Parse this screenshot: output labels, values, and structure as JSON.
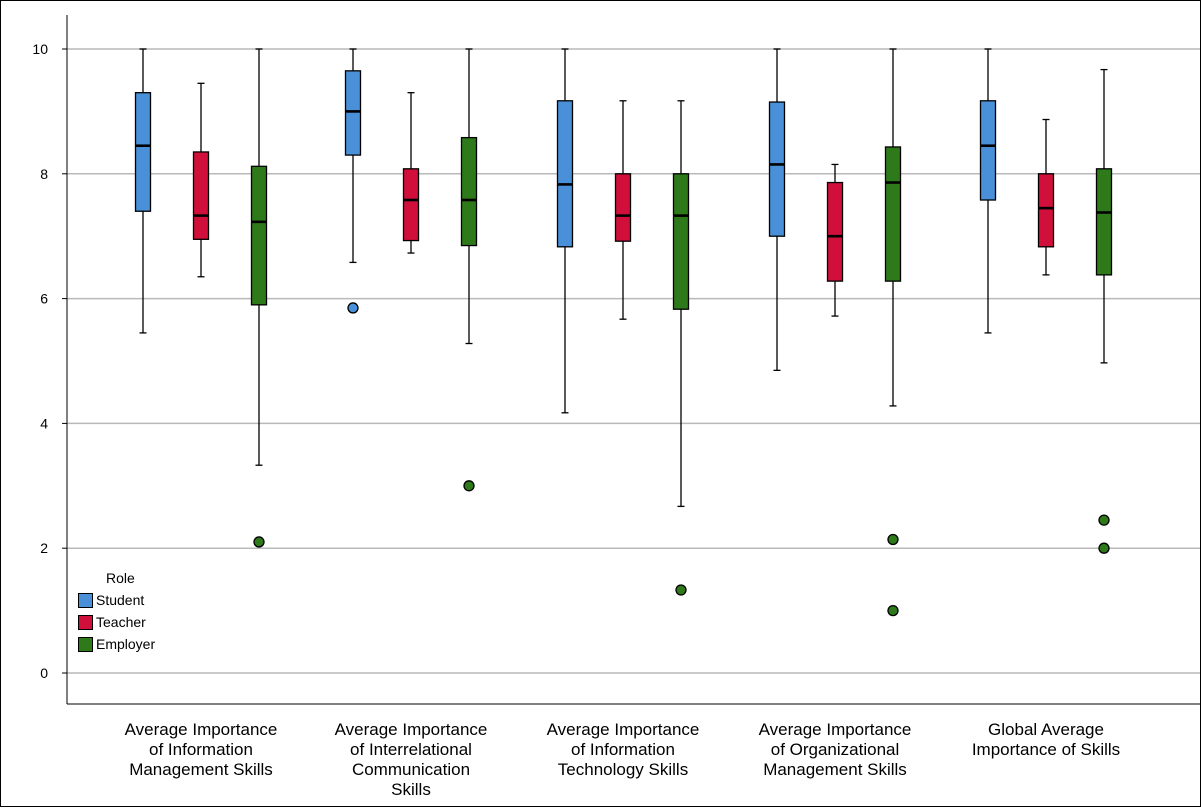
{
  "chart_data": {
    "type": "boxplot",
    "title": "",
    "xlabel": "",
    "ylabel": "",
    "ylim": [
      -0.5,
      10.5
    ],
    "yticks": [
      0,
      2,
      4,
      6,
      8,
      10
    ],
    "ytick_labels": [
      "0",
      "2",
      "4",
      "6",
      "8",
      "10"
    ],
    "grid": "horizontal",
    "legend": {
      "title": "Role",
      "placement": "bottom-left",
      "items": [
        {
          "name": "Student",
          "color": "#4a90d9"
        },
        {
          "name": "Teacher",
          "color": "#d0103a"
        },
        {
          "name": "Employer",
          "color": "#2e7a1a"
        }
      ]
    },
    "categories": [
      [
        "Average Importance",
        "of Information",
        "Management Skills"
      ],
      [
        "Average Importance",
        "of Interrelational",
        "Communication",
        "Skills"
      ],
      [
        "Average Importance",
        "of Information",
        "Technology Skills"
      ],
      [
        "Average Importance",
        "of Organizational",
        "Management Skills"
      ],
      [
        "Global Average",
        "Importance of Skills"
      ]
    ],
    "series": [
      {
        "name": "Student",
        "color": "#4a90d9",
        "boxes": [
          {
            "min": 5.45,
            "q1": 7.4,
            "median": 8.45,
            "q3": 9.3,
            "max": 10.0,
            "outliers": []
          },
          {
            "min": 6.58,
            "q1": 8.3,
            "median": 9.0,
            "q3": 9.65,
            "max": 10.0,
            "outliers": [
              5.85
            ]
          },
          {
            "min": 4.17,
            "q1": 6.83,
            "median": 7.83,
            "q3": 9.17,
            "max": 10.0,
            "outliers": []
          },
          {
            "min": 4.85,
            "q1": 7.0,
            "median": 8.15,
            "q3": 9.15,
            "max": 10.0,
            "outliers": []
          },
          {
            "min": 5.45,
            "q1": 7.58,
            "median": 8.45,
            "q3": 9.17,
            "max": 10.0,
            "outliers": []
          }
        ]
      },
      {
        "name": "Teacher",
        "color": "#d0103a",
        "boxes": [
          {
            "min": 6.35,
            "q1": 6.95,
            "median": 7.33,
            "q3": 8.35,
            "max": 9.45,
            "outliers": []
          },
          {
            "min": 6.73,
            "q1": 6.93,
            "median": 7.58,
            "q3": 8.08,
            "max": 9.3,
            "outliers": []
          },
          {
            "min": 5.67,
            "q1": 6.92,
            "median": 7.33,
            "q3": 8.0,
            "max": 9.17,
            "outliers": []
          },
          {
            "min": 5.72,
            "q1": 6.28,
            "median": 7.0,
            "q3": 7.86,
            "max": 8.15,
            "outliers": []
          },
          {
            "min": 6.38,
            "q1": 6.83,
            "median": 7.45,
            "q3": 8.0,
            "max": 8.87,
            "outliers": []
          }
        ]
      },
      {
        "name": "Employer",
        "color": "#2e7a1a",
        "boxes": [
          {
            "min": 3.33,
            "q1": 5.9,
            "median": 7.23,
            "q3": 8.12,
            "max": 10.0,
            "outliers": [
              2.1
            ]
          },
          {
            "min": 5.28,
            "q1": 6.85,
            "median": 7.58,
            "q3": 8.58,
            "max": 10.0,
            "outliers": [
              3.0
            ]
          },
          {
            "min": 2.67,
            "q1": 5.83,
            "median": 7.33,
            "q3": 8.0,
            "max": 9.17,
            "outliers": [
              1.33
            ]
          },
          {
            "min": 4.28,
            "q1": 6.28,
            "median": 7.86,
            "q3": 8.43,
            "max": 10.0,
            "outliers": [
              2.14,
              1.0
            ]
          },
          {
            "min": 4.97,
            "q1": 6.38,
            "median": 7.38,
            "q3": 8.08,
            "max": 9.67,
            "outliers": [
              2.45,
              2.0
            ]
          }
        ]
      }
    ]
  }
}
